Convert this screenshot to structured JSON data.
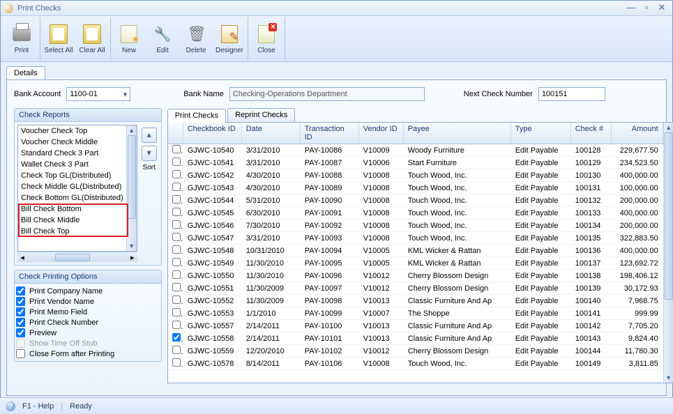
{
  "window": {
    "title": "Print Checks"
  },
  "toolbar": [
    {
      "id": "print",
      "label": "Print"
    },
    {
      "id": "select-all",
      "label": "Select All"
    },
    {
      "id": "clear-all",
      "label": "Clear All"
    },
    {
      "id": "new",
      "label": "New"
    },
    {
      "id": "edit",
      "label": "Edit"
    },
    {
      "id": "delete",
      "label": "Delete"
    },
    {
      "id": "designer",
      "label": "Designer"
    },
    {
      "id": "close",
      "label": "Close"
    }
  ],
  "tabs": {
    "main": "Details"
  },
  "form": {
    "bank_account_label": "Bank Account",
    "bank_account_value": "1100-01",
    "bank_name_label": "Bank Name",
    "bank_name_value": "Checking-Operations Department",
    "next_check_label": "Next Check Number",
    "next_check_value": "100151"
  },
  "reports": {
    "title": "Check Reports",
    "items": [
      "Voucher Check Top",
      "Voucher Check Middle",
      "Standard Check 3 Part",
      "Wallet Check 3 Part",
      "Check Top GL(Distributed)",
      "Check Middle GL(Distributed)",
      "Check Bottom GL(Distributed)",
      "Bill Check Bottom",
      "Bill Check Middle",
      "Bill Check Top"
    ],
    "sort_label": "Sort"
  },
  "options": {
    "title": "Check Printing Options",
    "items": [
      {
        "label": "Print Company Name",
        "checked": true,
        "enabled": true
      },
      {
        "label": "Print Vendor Name",
        "checked": true,
        "enabled": true
      },
      {
        "label": "Print Memo Field",
        "checked": true,
        "enabled": true
      },
      {
        "label": "Print Check Number",
        "checked": true,
        "enabled": true
      },
      {
        "label": "Preview",
        "checked": true,
        "enabled": true
      },
      {
        "label": "Show Time Off Stub",
        "checked": false,
        "enabled": false
      },
      {
        "label": "Close Form after Printing",
        "checked": false,
        "enabled": true
      }
    ]
  },
  "grid": {
    "subtabs": {
      "print": "Print Checks",
      "reprint": "Reprint Checks"
    },
    "columns": [
      "Checkbook ID",
      "Date",
      "Transaction ID",
      "Vendor ID",
      "Payee",
      "Type",
      "Check #",
      "Amount"
    ],
    "rows": [
      {
        "chk": false,
        "c": [
          "GJWC-10540",
          "3/31/2010",
          "PAY-10086",
          "V10009",
          "Woody Furniture",
          "Edit Payable",
          "100128",
          "229,677.50"
        ]
      },
      {
        "chk": false,
        "c": [
          "GJWC-10541",
          "3/31/2010",
          "PAY-10087",
          "V10006",
          "Start Furniture",
          "Edit Payable",
          "100129",
          "234,523.50"
        ]
      },
      {
        "chk": false,
        "c": [
          "GJWC-10542",
          "4/30/2010",
          "PAY-10088",
          "V10008",
          "Touch Wood, Inc.",
          "Edit Payable",
          "100130",
          "400,000.00"
        ]
      },
      {
        "chk": false,
        "c": [
          "GJWC-10543",
          "4/30/2010",
          "PAY-10089",
          "V10008",
          "Touch Wood, Inc.",
          "Edit Payable",
          "100131",
          "100,000.00"
        ]
      },
      {
        "chk": false,
        "c": [
          "GJWC-10544",
          "5/31/2010",
          "PAY-10090",
          "V10008",
          "Touch Wood, Inc.",
          "Edit Payable",
          "100132",
          "200,000.00"
        ]
      },
      {
        "chk": false,
        "c": [
          "GJWC-10545",
          "6/30/2010",
          "PAY-10091",
          "V10008",
          "Touch Wood, Inc.",
          "Edit Payable",
          "100133",
          "400,000.00"
        ]
      },
      {
        "chk": false,
        "c": [
          "GJWC-10546",
          "7/30/2010",
          "PAY-10092",
          "V10008",
          "Touch Wood, Inc.",
          "Edit Payable",
          "100134",
          "200,000.00"
        ]
      },
      {
        "chk": false,
        "c": [
          "GJWC-10547",
          "3/31/2010",
          "PAY-10093",
          "V10008",
          "Touch Wood, Inc.",
          "Edit Payable",
          "100135",
          "322,883.50"
        ]
      },
      {
        "chk": false,
        "c": [
          "GJWC-10548",
          "10/31/2010",
          "PAY-10094",
          "V10005",
          "KML Wicker & Rattan",
          "Edit Payable",
          "100136",
          "400,000.00"
        ]
      },
      {
        "chk": false,
        "c": [
          "GJWC-10549",
          "11/30/2010",
          "PAY-10095",
          "V10005",
          "KML Wicker & Rattan",
          "Edit Payable",
          "100137",
          "123,692.72"
        ]
      },
      {
        "chk": false,
        "c": [
          "GJWC-10550",
          "11/30/2010",
          "PAY-10096",
          "V10012",
          "Cherry Blossom Design",
          "Edit Payable",
          "100138",
          "198,406.12"
        ]
      },
      {
        "chk": false,
        "c": [
          "GJWC-10551",
          "11/30/2009",
          "PAY-10097",
          "V10012",
          "Cherry Blossom Design",
          "Edit Payable",
          "100139",
          "30,172.93"
        ]
      },
      {
        "chk": false,
        "c": [
          "GJWC-10552",
          "11/30/2009",
          "PAY-10098",
          "V10013",
          "Classic Furniture And Ap",
          "Edit Payable",
          "100140",
          "7,968.75"
        ]
      },
      {
        "chk": false,
        "c": [
          "GJWC-10553",
          "1/1/2010",
          "PAY-10099",
          "V10007",
          "The Shoppe",
          "Edit Payable",
          "100141",
          "999.99"
        ]
      },
      {
        "chk": false,
        "c": [
          "GJWC-10557",
          "2/14/2011",
          "PAY-10100",
          "V10013",
          "Classic Furniture And Ap",
          "Edit Payable",
          "100142",
          "7,705.20"
        ]
      },
      {
        "chk": true,
        "c": [
          "GJWC-10558",
          "2/14/2011",
          "PAY-10101",
          "V10013",
          "Classic Furniture And Ap",
          "Edit Payable",
          "100143",
          "9,824.40"
        ]
      },
      {
        "chk": false,
        "c": [
          "GJWC-10559",
          "12/20/2010",
          "PAY-10102",
          "V10012",
          "Cherry Blossom Design",
          "Edit Payable",
          "100144",
          "11,780.30"
        ]
      },
      {
        "chk": false,
        "c": [
          "GJWC-10578",
          "8/14/2011",
          "PAY-10106",
          "V10008",
          "Touch Wood, Inc.",
          "Edit Payable",
          "100149",
          "3,811.85"
        ]
      }
    ]
  },
  "status": {
    "help": "F1 - Help",
    "ready": "Ready"
  },
  "colors": {
    "border": "#8fa9cf",
    "header_grad_1": "#f6faff",
    "header_grad_2": "#dde9f8",
    "highlight": "#d82020",
    "text": "#000000",
    "title_text": "#4a6a9a"
  }
}
